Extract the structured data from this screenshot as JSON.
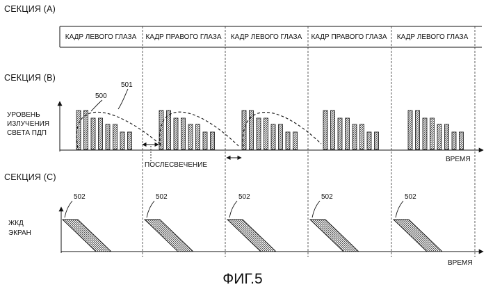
{
  "sections": {
    "a": "СЕКЦИЯ (А)",
    "b": "СЕКЦИЯ (В)",
    "c": "СЕКЦИЯ (С)"
  },
  "frames": [
    "КАДР ЛЕВОГО ГЛАЗА",
    "КАДР ПРАВОГО ГЛАЗА",
    "КАДР ЛЕВОГО ГЛАЗА",
    "КАДР ПРАВОГО ГЛАЗА",
    "КАДР ЛЕВОГО ГЛАЗА"
  ],
  "pdp": {
    "ylabel": [
      "УРОВЕНЬ",
      "ИЗЛУЧЕНИЯ",
      "СВЕТА ПДП"
    ],
    "xlabel": "ВРЕМЯ",
    "afterglow_label": "ПОСЛЕСВЕЧЕНИЕ",
    "ref_500": "500",
    "ref_501": "501",
    "bar_levels": [
      1.0,
      1.0,
      0.8,
      0.8,
      0.65,
      0.65,
      0.45,
      0.45
    ]
  },
  "lcd": {
    "ylabel": [
      "ЖКД",
      "ЭКРАН"
    ],
    "xlabel": "ВРЕМЯ",
    "refs": [
      "502",
      "502",
      "502",
      "502",
      "502"
    ]
  },
  "caption": "ФИГ.5"
}
